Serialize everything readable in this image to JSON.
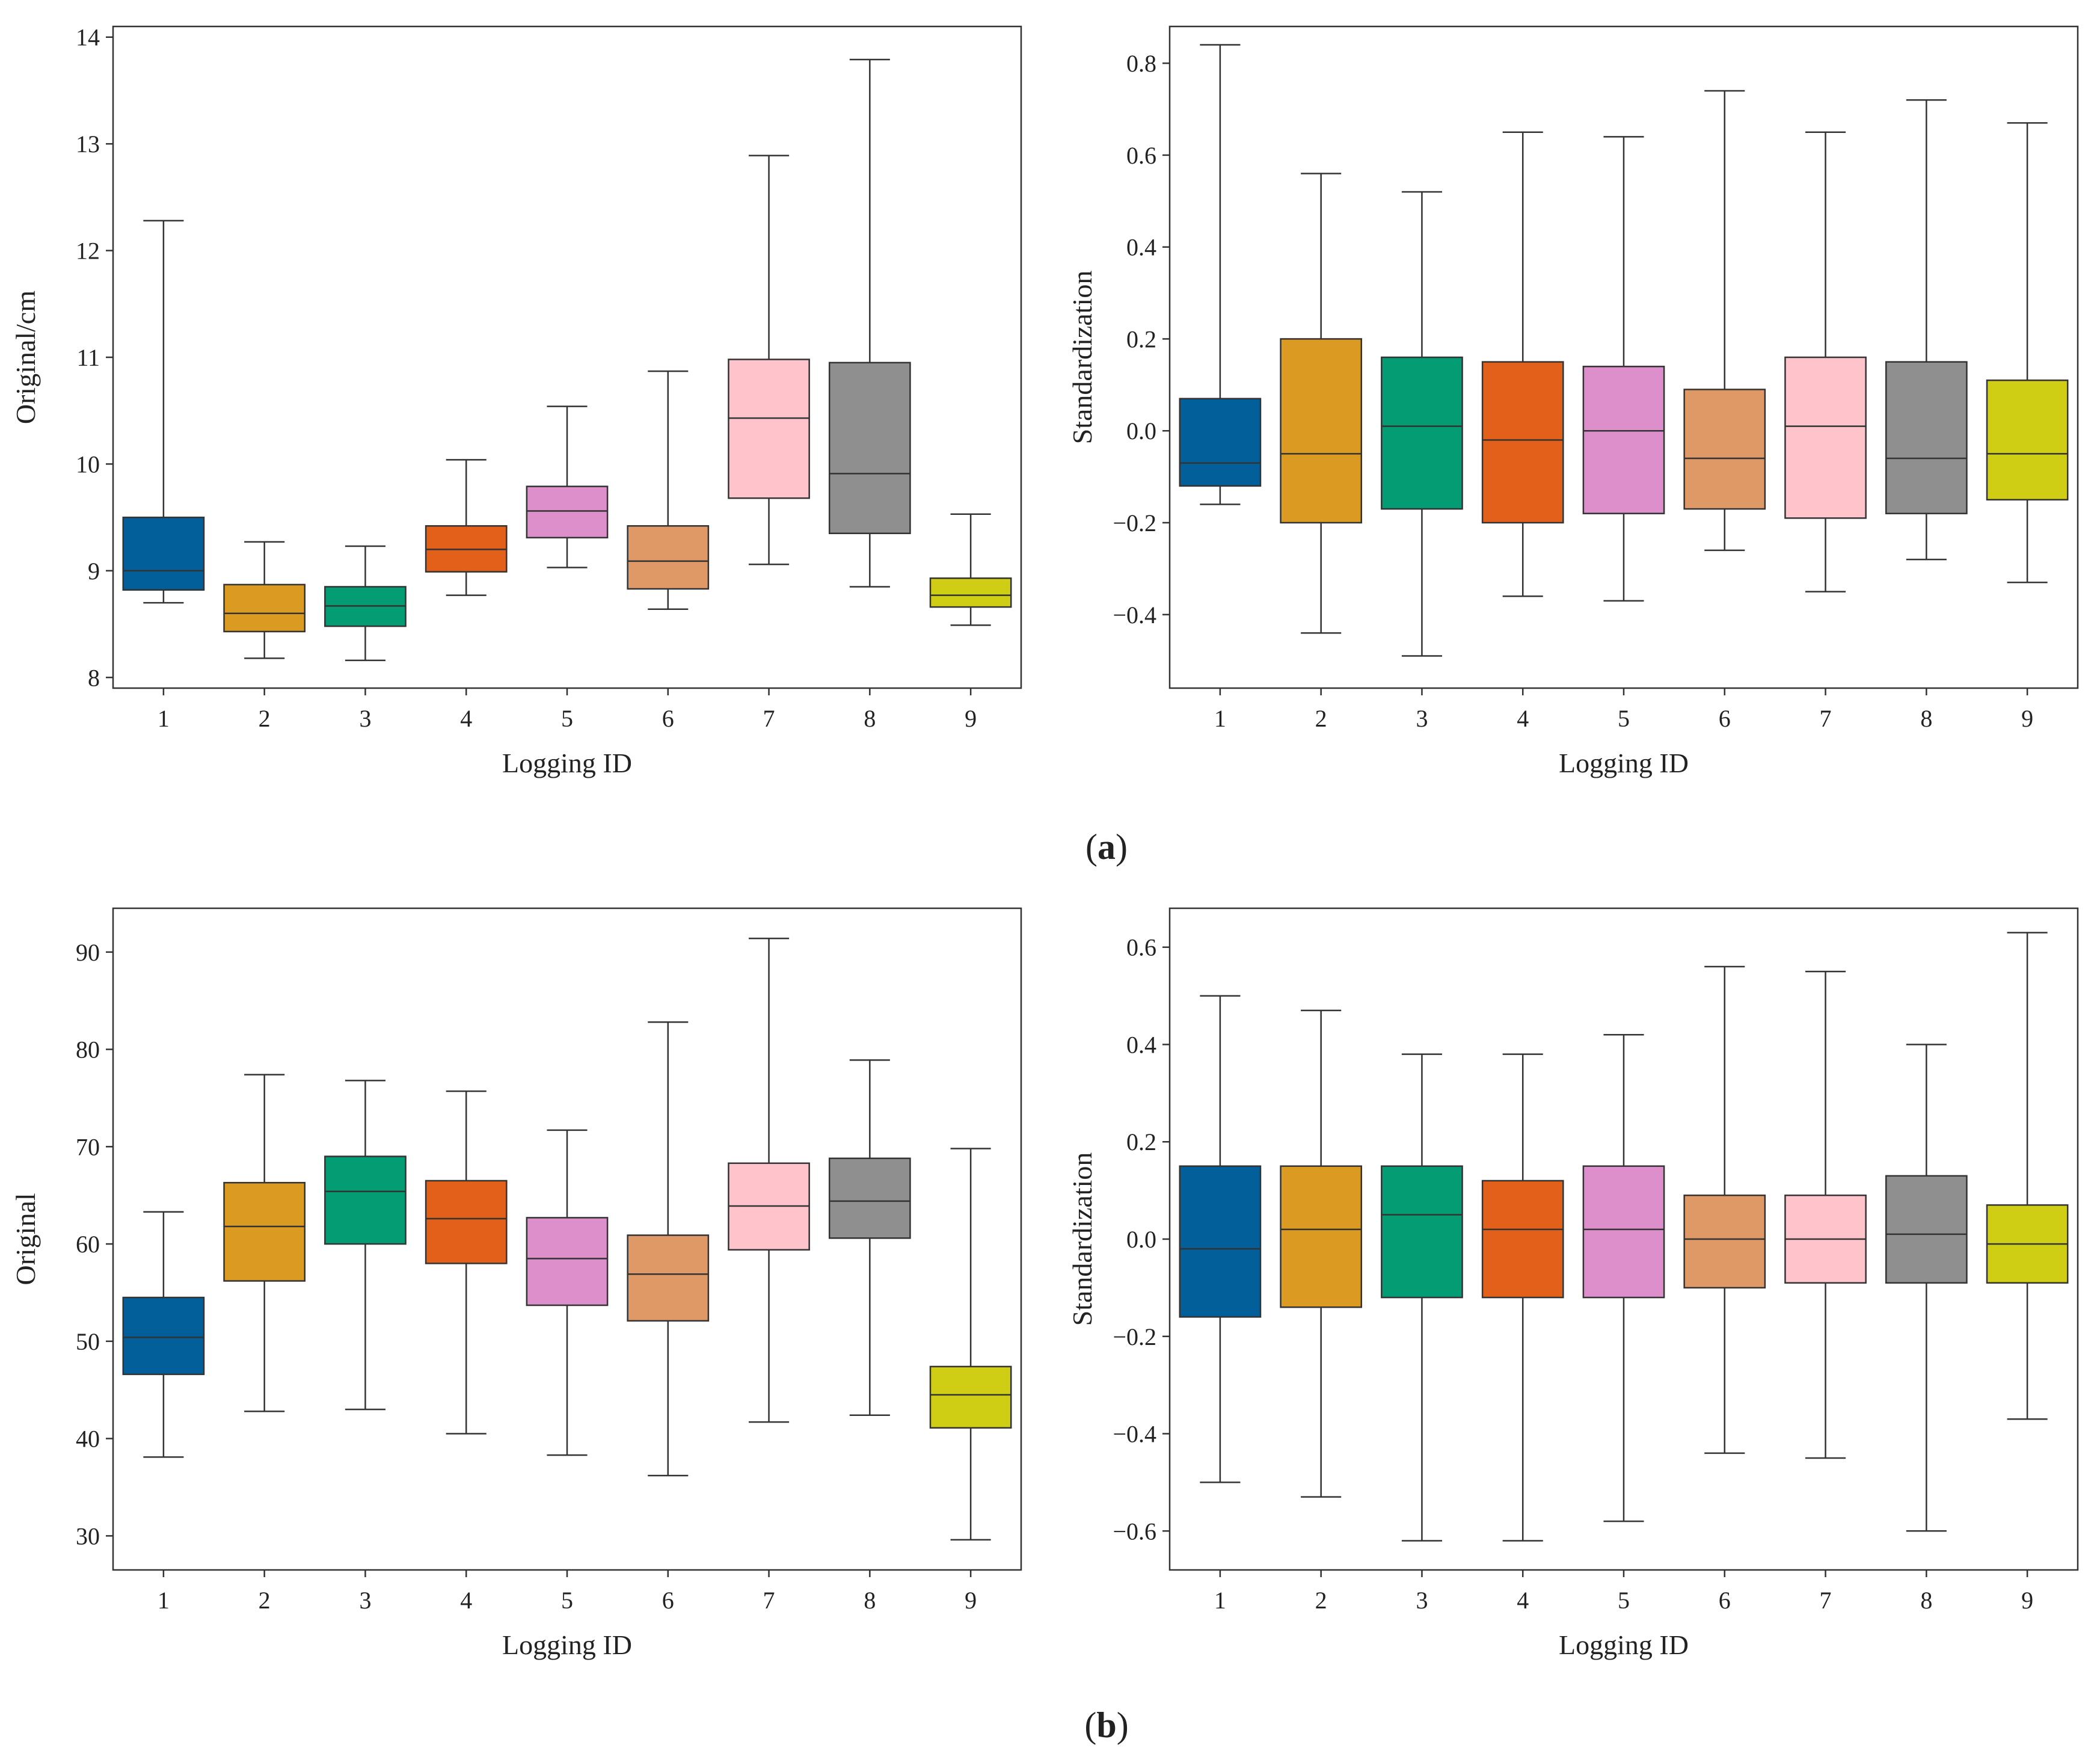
{
  "colors": [
    "#035f9a",
    "#db9a21",
    "#049c72",
    "#e3601b",
    "#dd8fcc",
    "#de9966",
    "#ffc4cb",
    "#8f8f8f",
    "#cfcd14"
  ],
  "panel_labels": [
    {
      "open": "(",
      "letter": "a",
      "close": ")"
    },
    {
      "open": "(",
      "letter": "b",
      "close": ")"
    }
  ],
  "chart_data": [
    {
      "type": "boxplot",
      "panel": "a-left",
      "xlabel": "Logging ID",
      "ylabel": "Original/cm",
      "ylim": [
        7.9,
        14.1
      ],
      "yticks": [
        8,
        9,
        10,
        11,
        12,
        13,
        14
      ],
      "ytick_labels": [
        "8",
        "9",
        "10",
        "11",
        "12",
        "13",
        "14"
      ],
      "categories": [
        "1",
        "2",
        "3",
        "4",
        "5",
        "6",
        "7",
        "8",
        "9"
      ],
      "boxes": [
        {
          "whislo": 8.7,
          "q1": 8.82,
          "med": 9.0,
          "q3": 9.5,
          "whishi": 12.28
        },
        {
          "whislo": 8.18,
          "q1": 8.43,
          "med": 8.6,
          "q3": 8.87,
          "whishi": 9.27
        },
        {
          "whislo": 8.16,
          "q1": 8.48,
          "med": 8.67,
          "q3": 8.85,
          "whishi": 9.23
        },
        {
          "whislo": 8.77,
          "q1": 8.99,
          "med": 9.2,
          "q3": 9.42,
          "whishi": 10.04
        },
        {
          "whislo": 9.03,
          "q1": 9.31,
          "med": 9.56,
          "q3": 9.79,
          "whishi": 10.54
        },
        {
          "whislo": 8.64,
          "q1": 8.83,
          "med": 9.09,
          "q3": 9.42,
          "whishi": 10.87
        },
        {
          "whislo": 9.06,
          "q1": 9.68,
          "med": 10.43,
          "q3": 10.98,
          "whishi": 12.89
        },
        {
          "whislo": 8.85,
          "q1": 9.35,
          "med": 9.91,
          "q3": 10.95,
          "whishi": 13.79
        },
        {
          "whislo": 8.49,
          "q1": 8.66,
          "med": 8.77,
          "q3": 8.93,
          "whishi": 9.53
        }
      ]
    },
    {
      "type": "boxplot",
      "panel": "a-right",
      "xlabel": "Logging ID",
      "ylabel": "Standardization",
      "ylim": [
        -0.56,
        0.88
      ],
      "yticks": [
        -0.4,
        -0.2,
        0.0,
        0.2,
        0.4,
        0.6,
        0.8
      ],
      "ytick_labels": [
        "−0.4",
        "−0.2",
        "0.0",
        "0.2",
        "0.4",
        "0.6",
        "0.8"
      ],
      "categories": [
        "1",
        "2",
        "3",
        "4",
        "5",
        "6",
        "7",
        "8",
        "9"
      ],
      "boxes": [
        {
          "whislo": -0.16,
          "q1": -0.12,
          "med": -0.07,
          "q3": 0.07,
          "whishi": 0.84
        },
        {
          "whislo": -0.44,
          "q1": -0.2,
          "med": -0.05,
          "q3": 0.2,
          "whishi": 0.56
        },
        {
          "whislo": -0.49,
          "q1": -0.17,
          "med": 0.01,
          "q3": 0.16,
          "whishi": 0.52
        },
        {
          "whislo": -0.36,
          "q1": -0.2,
          "med": -0.02,
          "q3": 0.15,
          "whishi": 0.65
        },
        {
          "whislo": -0.37,
          "q1": -0.18,
          "med": 0.0,
          "q3": 0.14,
          "whishi": 0.64
        },
        {
          "whislo": -0.26,
          "q1": -0.17,
          "med": -0.06,
          "q3": 0.09,
          "whishi": 0.74
        },
        {
          "whislo": -0.35,
          "q1": -0.19,
          "med": 0.01,
          "q3": 0.16,
          "whishi": 0.65
        },
        {
          "whislo": -0.28,
          "q1": -0.18,
          "med": -0.06,
          "q3": 0.15,
          "whishi": 0.72
        },
        {
          "whislo": -0.33,
          "q1": -0.15,
          "med": -0.05,
          "q3": 0.11,
          "whishi": 0.67
        }
      ]
    },
    {
      "type": "boxplot",
      "panel": "b-left",
      "xlabel": "Logging ID",
      "ylabel": "Original",
      "ylim": [
        26.5,
        94.5
      ],
      "yticks": [
        30,
        40,
        50,
        60,
        70,
        80,
        90
      ],
      "ytick_labels": [
        "30",
        "40",
        "50",
        "60",
        "70",
        "80",
        "90"
      ],
      "categories": [
        "1",
        "2",
        "3",
        "4",
        "5",
        "6",
        "7",
        "8",
        "9"
      ],
      "boxes": [
        {
          "whislo": 38.1,
          "q1": 46.6,
          "med": 50.4,
          "q3": 54.5,
          "whishi": 63.3
        },
        {
          "whislo": 42.8,
          "q1": 56.2,
          "med": 61.8,
          "q3": 66.3,
          "whishi": 77.4
        },
        {
          "whislo": 43.0,
          "q1": 60.0,
          "med": 65.4,
          "q3": 69.0,
          "whishi": 76.8
        },
        {
          "whislo": 40.5,
          "q1": 58.0,
          "med": 62.6,
          "q3": 66.5,
          "whishi": 75.7
        },
        {
          "whislo": 38.3,
          "q1": 53.7,
          "med": 58.5,
          "q3": 62.7,
          "whishi": 71.7
        },
        {
          "whislo": 36.2,
          "q1": 52.1,
          "med": 56.9,
          "q3": 60.9,
          "whishi": 82.8
        },
        {
          "whislo": 41.7,
          "q1": 59.4,
          "med": 63.9,
          "q3": 68.3,
          "whishi": 91.4
        },
        {
          "whislo": 42.4,
          "q1": 60.6,
          "med": 64.4,
          "q3": 68.8,
          "whishi": 78.9
        },
        {
          "whislo": 29.6,
          "q1": 41.1,
          "med": 44.5,
          "q3": 47.4,
          "whishi": 69.8
        }
      ]
    },
    {
      "type": "boxplot",
      "panel": "b-right",
      "xlabel": "Logging ID",
      "ylabel": "Standardization",
      "ylim": [
        -0.68,
        0.68
      ],
      "yticks": [
        -0.6,
        -0.4,
        -0.2,
        0.0,
        0.2,
        0.4,
        0.6
      ],
      "ytick_labels": [
        "−0.6",
        "−0.4",
        "−0.2",
        "0.0",
        "0.2",
        "0.4",
        "0.6"
      ],
      "categories": [
        "1",
        "2",
        "3",
        "4",
        "5",
        "6",
        "7",
        "8",
        "9"
      ],
      "boxes": [
        {
          "whislo": -0.5,
          "q1": -0.16,
          "med": -0.02,
          "q3": 0.15,
          "whishi": 0.5
        },
        {
          "whislo": -0.53,
          "q1": -0.14,
          "med": 0.02,
          "q3": 0.15,
          "whishi": 0.47
        },
        {
          "whislo": -0.62,
          "q1": -0.12,
          "med": 0.05,
          "q3": 0.15,
          "whishi": 0.38
        },
        {
          "whislo": -0.62,
          "q1": -0.12,
          "med": 0.02,
          "q3": 0.12,
          "whishi": 0.38
        },
        {
          "whislo": -0.58,
          "q1": -0.12,
          "med": 0.02,
          "q3": 0.15,
          "whishi": 0.42
        },
        {
          "whislo": -0.44,
          "q1": -0.1,
          "med": 0.0,
          "q3": 0.09,
          "whishi": 0.56
        },
        {
          "whislo": -0.45,
          "q1": -0.09,
          "med": 0.0,
          "q3": 0.09,
          "whishi": 0.55
        },
        {
          "whislo": -0.6,
          "q1": -0.09,
          "med": 0.01,
          "q3": 0.13,
          "whishi": 0.4
        },
        {
          "whislo": -0.37,
          "q1": -0.09,
          "med": -0.01,
          "q3": 0.07,
          "whishi": 0.63
        }
      ]
    }
  ]
}
